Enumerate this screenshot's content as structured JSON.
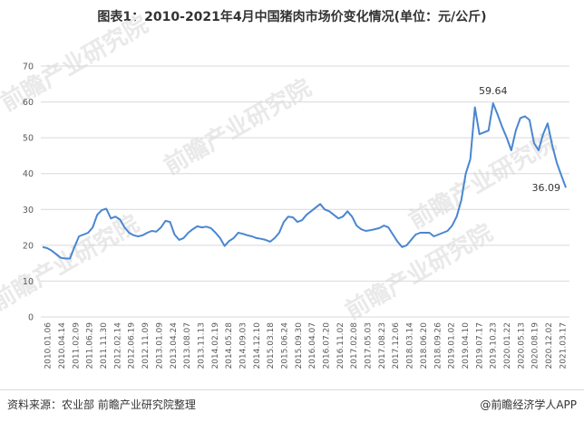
{
  "title": "图表1：2010-2021年4月中国猪肉市场价变化情况(单位：元/公斤)",
  "source": "资料来源：农业部 前瞻产业研究院整理",
  "brand": "@前瞻经济学人APP",
  "watermark": "前瞻产业研究院",
  "colors": {
    "line": "#4a86d1",
    "grid": "#d9d9d9",
    "text": "#595959"
  },
  "chart_data": {
    "type": "line",
    "title": "图表1：2010-2021年4月中国猪肉市场价变化情况(单位：元/公斤)",
    "xlabel": "",
    "ylabel": "",
    "ylim": [
      0,
      70
    ],
    "yticks": [
      0,
      10,
      20,
      30,
      40,
      50,
      60,
      70
    ],
    "grid": true,
    "x_tick_labels": [
      "2010.01.06",
      "2010.04.14",
      "2011.02.09",
      "2011.06.29",
      "2011.11.30",
      "2012.02.14",
      "2012.06.19",
      "2012.11.09",
      "2013.01.09",
      "2013.04.24",
      "2013.08.07",
      "2013.11.13",
      "2014.02.19",
      "2014.05.28",
      "2014.09.03",
      "2014.12.10",
      "2015.03.18",
      "2015.06.24",
      "2015.09.30",
      "2016.04.07",
      "2016.07.20",
      "2016.11.02",
      "2017.02.08",
      "2017.05.03",
      "2017.08.23",
      "2017.12.06",
      "2018.03.14",
      "2018.06.20",
      "2018.09.26",
      "2019.01.02",
      "2019.04.10",
      "2019.07.17",
      "2019.10.23",
      "2020.01.22",
      "2020.05.13",
      "2020.08.19",
      "2020.12.02",
      "2021.03.17"
    ],
    "series": [
      {
        "values": [
          19.5,
          19.2,
          18.5,
          17.5,
          16.5,
          16.3,
          16.3,
          19.5,
          22.5,
          23.0,
          23.5,
          25.0,
          28.5,
          29.8,
          30.2,
          27.5,
          28.0,
          27.2,
          25.0,
          23.5,
          22.8,
          22.5,
          22.8,
          23.5,
          24.0,
          23.8,
          25.0,
          26.8,
          26.5,
          23.0,
          21.5,
          22.0,
          23.5,
          24.5,
          25.3,
          25.0,
          25.2,
          24.8,
          23.5,
          22.0,
          19.8,
          21.2,
          22.0,
          23.5,
          23.2,
          22.8,
          22.5,
          22.0,
          21.8,
          21.5,
          21.0,
          22.0,
          23.5,
          26.5,
          28.0,
          27.8,
          26.5,
          27.0,
          28.5,
          29.5,
          30.5,
          31.5,
          30.0,
          29.5,
          28.5,
          27.5,
          28.0,
          29.5,
          28.0,
          25.5,
          24.5,
          24.0,
          24.2,
          24.5,
          24.8,
          25.5,
          25.0,
          23.0,
          21.0,
          19.5,
          20.0,
          21.5,
          23.0,
          23.5,
          23.5,
          23.5,
          22.5,
          23.0,
          23.5,
          24.0,
          25.5,
          28.0,
          32.5,
          40.0,
          44.0,
          58.5,
          51.0,
          51.5,
          52.0,
          59.64,
          56.5,
          53.0,
          50.0,
          46.5,
          52.0,
          55.5,
          56.0,
          55.0,
          48.5,
          46.5,
          51.0,
          54.0,
          48.0,
          43.0,
          39.5,
          36.09
        ]
      }
    ],
    "annotations": [
      {
        "label": "59.64",
        "value": 59.64
      },
      {
        "label": "36.09",
        "value": 36.09
      }
    ]
  }
}
